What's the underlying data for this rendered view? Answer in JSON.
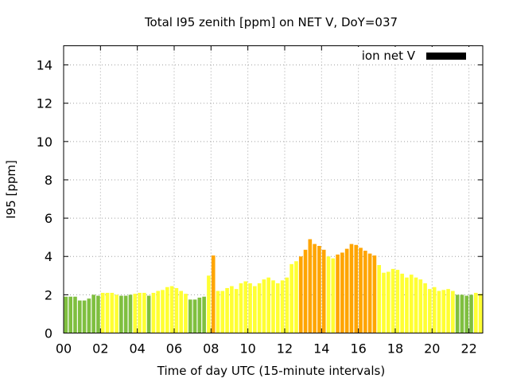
{
  "chart_data": {
    "type": "bar",
    "title": "Total I95 zenith [ppm] on NET V, DoY=037",
    "xlabel": "Time of day UTC (15-minute intervals)",
    "ylabel": "I95 [ppm]",
    "ylim": [
      0,
      15
    ],
    "yticks": [
      0,
      2,
      4,
      6,
      8,
      10,
      12,
      14
    ],
    "xlim": [
      0,
      22.75
    ],
    "xticks": [
      0,
      2,
      4,
      6,
      8,
      10,
      12,
      14,
      16,
      18,
      20,
      22
    ],
    "xtick_labels": [
      "00",
      "02",
      "04",
      "06",
      "08",
      "10",
      "12",
      "14",
      "16",
      "18",
      "20",
      "22"
    ],
    "grid": true,
    "legend": {
      "label": "ion net V",
      "color": "#000000",
      "position": "top-right"
    },
    "colors": {
      "green": "#7fbf3f",
      "yellow": "#ffff33",
      "orange": "#ffa500"
    },
    "bar_width_hours": 0.2,
    "bars": [
      {
        "x": 0.125,
        "value": 1.9,
        "color": "green"
      },
      {
        "x": 0.375,
        "value": 1.9,
        "color": "green"
      },
      {
        "x": 0.625,
        "value": 1.9,
        "color": "green"
      },
      {
        "x": 0.875,
        "value": 1.7,
        "color": "green"
      },
      {
        "x": 1.125,
        "value": 1.7,
        "color": "green"
      },
      {
        "x": 1.375,
        "value": 1.8,
        "color": "green"
      },
      {
        "x": 1.625,
        "value": 2.0,
        "color": "green"
      },
      {
        "x": 1.875,
        "value": 1.95,
        "color": "green"
      },
      {
        "x": 2.125,
        "value": 2.1,
        "color": "yellow"
      },
      {
        "x": 2.375,
        "value": 2.1,
        "color": "yellow"
      },
      {
        "x": 2.625,
        "value": 2.1,
        "color": "yellow"
      },
      {
        "x": 2.875,
        "value": 2.0,
        "color": "yellow"
      },
      {
        "x": 3.125,
        "value": 1.95,
        "color": "green"
      },
      {
        "x": 3.375,
        "value": 1.95,
        "color": "green"
      },
      {
        "x": 3.625,
        "value": 2.0,
        "color": "green"
      },
      {
        "x": 3.875,
        "value": 2.05,
        "color": "yellow"
      },
      {
        "x": 4.125,
        "value": 2.1,
        "color": "yellow"
      },
      {
        "x": 4.375,
        "value": 2.1,
        "color": "yellow"
      },
      {
        "x": 4.625,
        "value": 1.95,
        "color": "green"
      },
      {
        "x": 4.875,
        "value": 2.1,
        "color": "yellow"
      },
      {
        "x": 5.125,
        "value": 2.2,
        "color": "yellow"
      },
      {
        "x": 5.375,
        "value": 2.25,
        "color": "yellow"
      },
      {
        "x": 5.625,
        "value": 2.4,
        "color": "yellow"
      },
      {
        "x": 5.875,
        "value": 2.45,
        "color": "yellow"
      },
      {
        "x": 6.125,
        "value": 2.35,
        "color": "yellow"
      },
      {
        "x": 6.375,
        "value": 2.2,
        "color": "yellow"
      },
      {
        "x": 6.625,
        "value": 2.05,
        "color": "yellow"
      },
      {
        "x": 6.875,
        "value": 1.75,
        "color": "green"
      },
      {
        "x": 7.125,
        "value": 1.75,
        "color": "green"
      },
      {
        "x": 7.375,
        "value": 1.85,
        "color": "green"
      },
      {
        "x": 7.625,
        "value": 1.9,
        "color": "green"
      },
      {
        "x": 7.875,
        "value": 3.0,
        "color": "yellow"
      },
      {
        "x": 8.125,
        "value": 4.05,
        "color": "orange"
      },
      {
        "x": 8.375,
        "value": 2.2,
        "color": "yellow"
      },
      {
        "x": 8.625,
        "value": 2.2,
        "color": "yellow"
      },
      {
        "x": 8.875,
        "value": 2.35,
        "color": "yellow"
      },
      {
        "x": 9.125,
        "value": 2.45,
        "color": "yellow"
      },
      {
        "x": 9.375,
        "value": 2.3,
        "color": "yellow"
      },
      {
        "x": 9.625,
        "value": 2.6,
        "color": "yellow"
      },
      {
        "x": 9.875,
        "value": 2.7,
        "color": "yellow"
      },
      {
        "x": 10.125,
        "value": 2.6,
        "color": "yellow"
      },
      {
        "x": 10.375,
        "value": 2.45,
        "color": "yellow"
      },
      {
        "x": 10.625,
        "value": 2.6,
        "color": "yellow"
      },
      {
        "x": 10.875,
        "value": 2.8,
        "color": "yellow"
      },
      {
        "x": 11.125,
        "value": 2.9,
        "color": "yellow"
      },
      {
        "x": 11.375,
        "value": 2.75,
        "color": "yellow"
      },
      {
        "x": 11.625,
        "value": 2.6,
        "color": "yellow"
      },
      {
        "x": 11.875,
        "value": 2.75,
        "color": "yellow"
      },
      {
        "x": 12.125,
        "value": 2.9,
        "color": "yellow"
      },
      {
        "x": 12.375,
        "value": 3.6,
        "color": "yellow"
      },
      {
        "x": 12.625,
        "value": 3.75,
        "color": "yellow"
      },
      {
        "x": 12.875,
        "value": 4.0,
        "color": "orange"
      },
      {
        "x": 13.125,
        "value": 4.35,
        "color": "orange"
      },
      {
        "x": 13.375,
        "value": 4.9,
        "color": "orange"
      },
      {
        "x": 13.625,
        "value": 4.65,
        "color": "orange"
      },
      {
        "x": 13.875,
        "value": 4.55,
        "color": "orange"
      },
      {
        "x": 14.125,
        "value": 4.35,
        "color": "orange"
      },
      {
        "x": 14.375,
        "value": 4.0,
        "color": "yellow"
      },
      {
        "x": 14.625,
        "value": 3.9,
        "color": "yellow"
      },
      {
        "x": 14.875,
        "value": 4.1,
        "color": "orange"
      },
      {
        "x": 15.125,
        "value": 4.2,
        "color": "orange"
      },
      {
        "x": 15.375,
        "value": 4.4,
        "color": "orange"
      },
      {
        "x": 15.625,
        "value": 4.65,
        "color": "orange"
      },
      {
        "x": 15.875,
        "value": 4.6,
        "color": "orange"
      },
      {
        "x": 16.125,
        "value": 4.45,
        "color": "orange"
      },
      {
        "x": 16.375,
        "value": 4.3,
        "color": "orange"
      },
      {
        "x": 16.625,
        "value": 4.15,
        "color": "orange"
      },
      {
        "x": 16.875,
        "value": 4.05,
        "color": "orange"
      },
      {
        "x": 17.125,
        "value": 3.55,
        "color": "yellow"
      },
      {
        "x": 17.375,
        "value": 3.15,
        "color": "yellow"
      },
      {
        "x": 17.625,
        "value": 3.2,
        "color": "yellow"
      },
      {
        "x": 17.875,
        "value": 3.35,
        "color": "yellow"
      },
      {
        "x": 18.125,
        "value": 3.3,
        "color": "yellow"
      },
      {
        "x": 18.375,
        "value": 3.1,
        "color": "yellow"
      },
      {
        "x": 18.625,
        "value": 2.9,
        "color": "yellow"
      },
      {
        "x": 18.875,
        "value": 3.05,
        "color": "yellow"
      },
      {
        "x": 19.125,
        "value": 2.9,
        "color": "yellow"
      },
      {
        "x": 19.375,
        "value": 2.8,
        "color": "yellow"
      },
      {
        "x": 19.625,
        "value": 2.6,
        "color": "yellow"
      },
      {
        "x": 19.875,
        "value": 2.3,
        "color": "yellow"
      },
      {
        "x": 20.125,
        "value": 2.4,
        "color": "yellow"
      },
      {
        "x": 20.375,
        "value": 2.2,
        "color": "yellow"
      },
      {
        "x": 20.625,
        "value": 2.25,
        "color": "yellow"
      },
      {
        "x": 20.875,
        "value": 2.3,
        "color": "yellow"
      },
      {
        "x": 21.125,
        "value": 2.2,
        "color": "yellow"
      },
      {
        "x": 21.375,
        "value": 2.0,
        "color": "green"
      },
      {
        "x": 21.625,
        "value": 2.0,
        "color": "green"
      },
      {
        "x": 21.875,
        "value": 1.95,
        "color": "green"
      },
      {
        "x": 22.125,
        "value": 2.0,
        "color": "green"
      },
      {
        "x": 22.375,
        "value": 2.1,
        "color": "yellow"
      },
      {
        "x": 22.625,
        "value": 2.05,
        "color": "yellow"
      }
    ]
  }
}
